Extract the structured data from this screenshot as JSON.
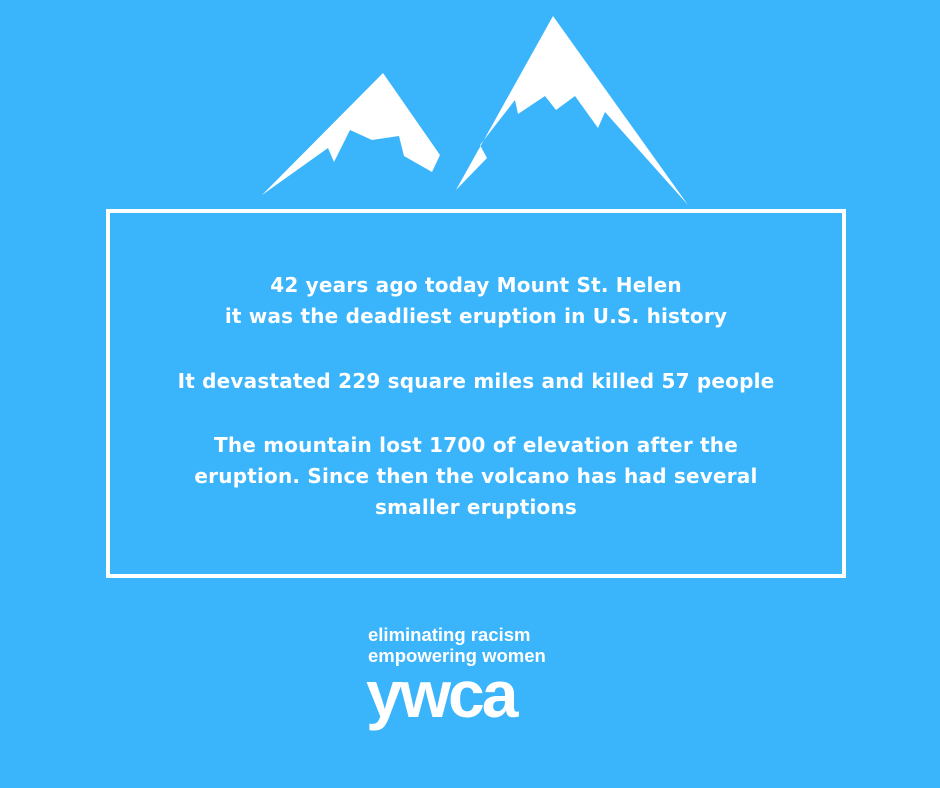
{
  "colors": {
    "background": "#3ab4fb",
    "foreground": "#ffffff"
  },
  "icons": {
    "mountains": "snow-capped-mountains-icon"
  },
  "info_box": {
    "line1": "42 years ago today Mount St. Helen",
    "line2": "it was the deadliest eruption in U.S. history",
    "line3": "It devastated 229 square miles and killed 57 people",
    "line4": "The mountain lost 1700 of elevation after the",
    "line5": "eruption. Since then the volcano has had several",
    "line6": "smaller eruptions"
  },
  "footer": {
    "tagline_line1": "eliminating racism",
    "tagline_line2": "empowering women",
    "logo": "ywca"
  }
}
